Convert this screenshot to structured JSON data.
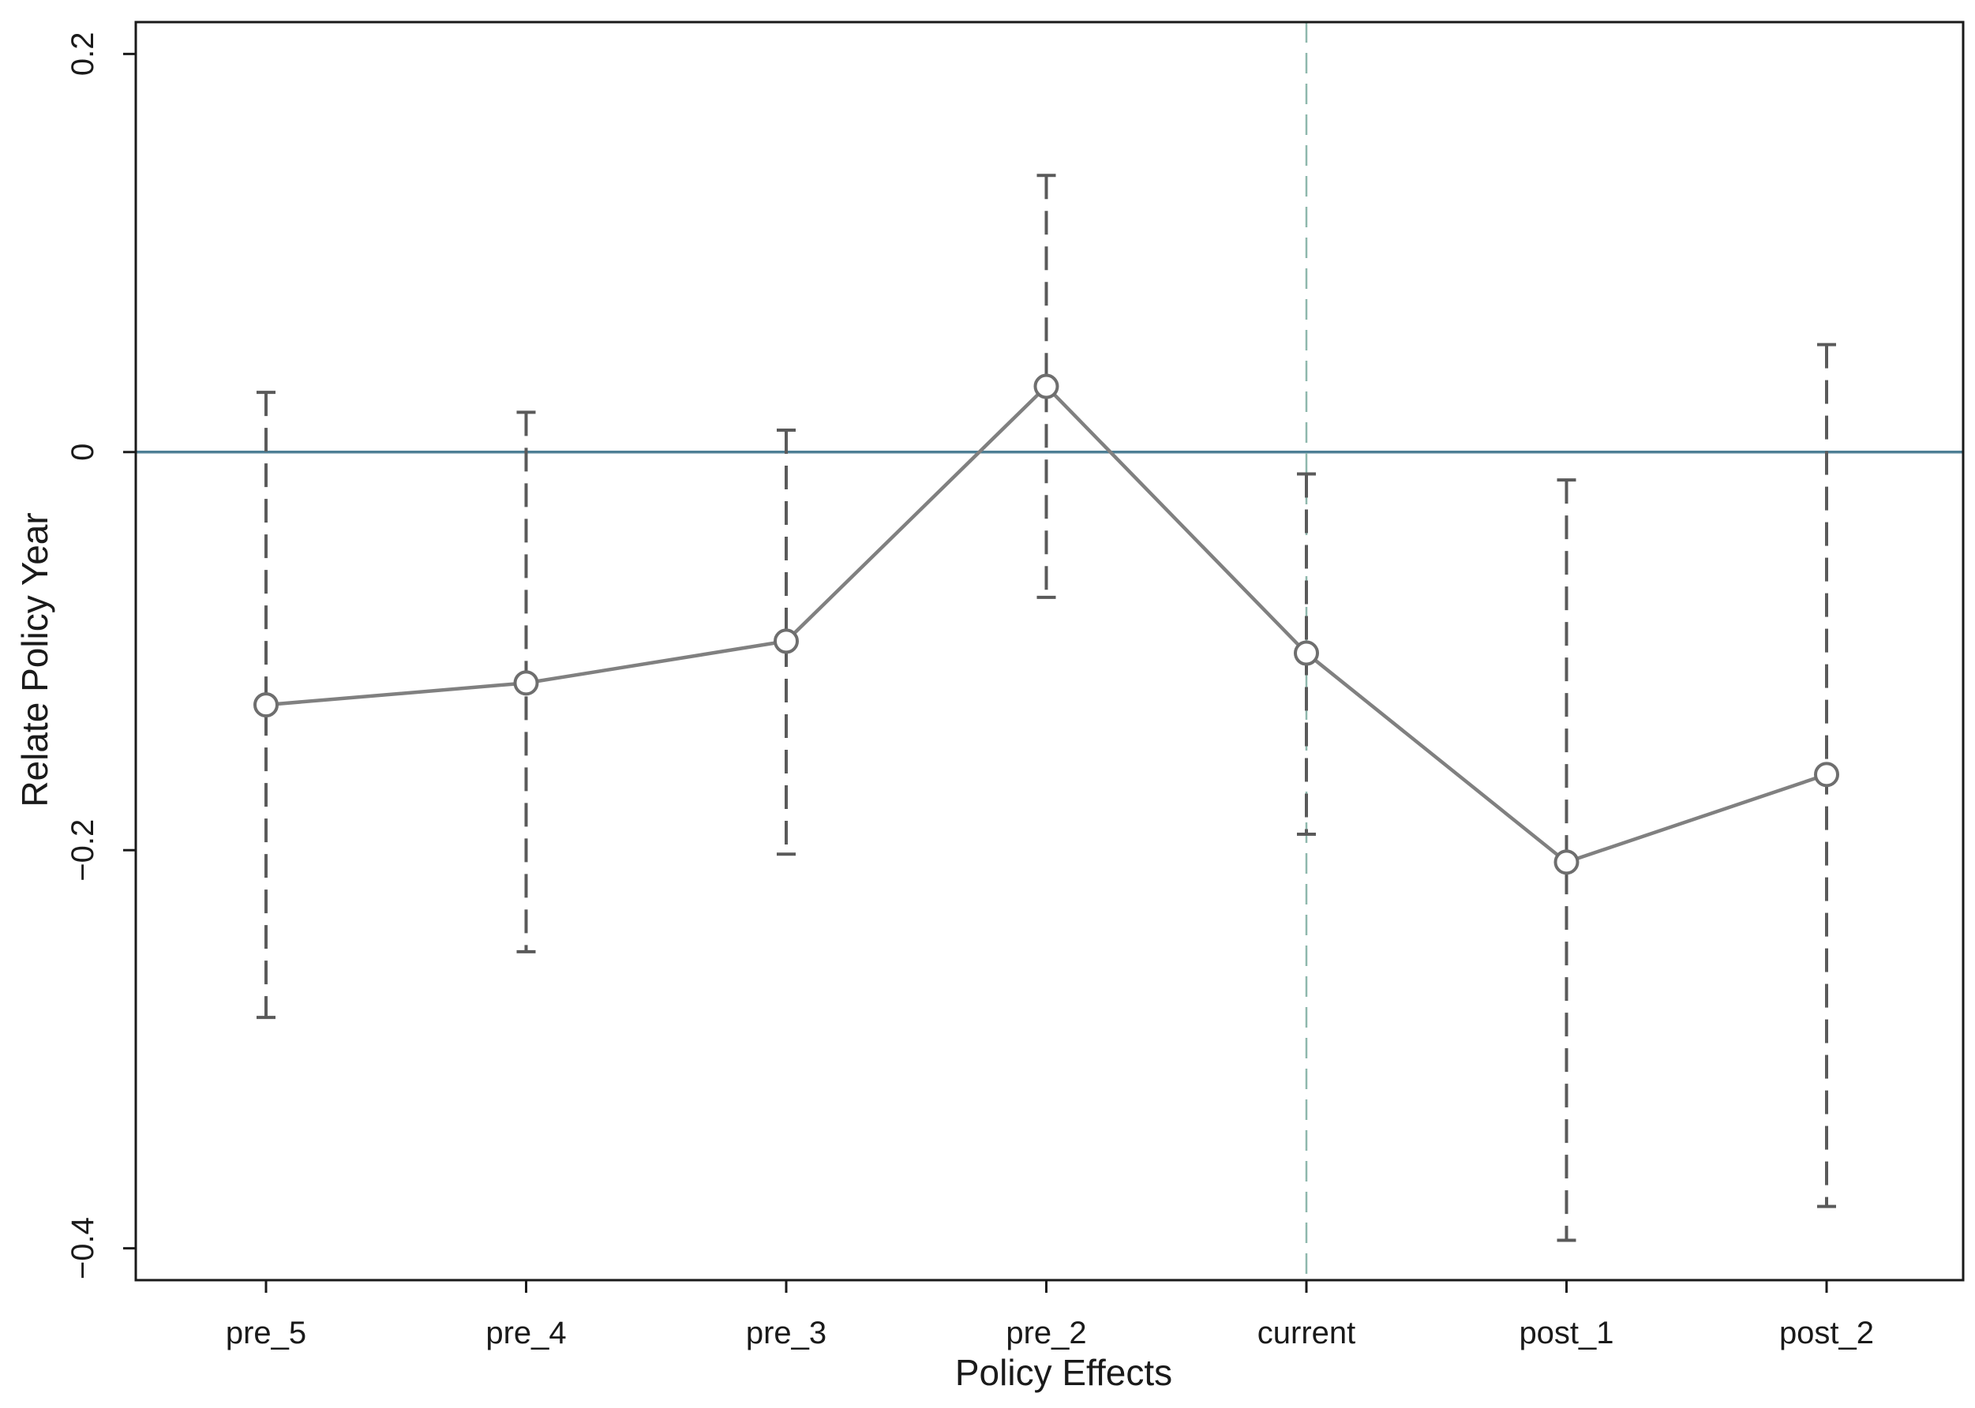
{
  "chart_data": {
    "type": "line",
    "title": "",
    "xlabel": "Policy Effects",
    "ylabel": "Relate Policy Year",
    "categories": [
      "pre_5",
      "pre_4",
      "pre_3",
      "pre_2",
      "current",
      "post_1",
      "post_2"
    ],
    "series": [
      {
        "values": [
          -0.127,
          -0.116,
          -0.095,
          0.033,
          -0.101,
          -0.206,
          -0.162
        ],
        "ci_lower": [
          -0.284,
          -0.251,
          -0.202,
          -0.073,
          -0.192,
          -0.396,
          -0.379
        ],
        "ci_upper": [
          0.03,
          0.02,
          0.011,
          0.139,
          -0.011,
          -0.014,
          0.054
        ]
      }
    ],
    "y_ticks": [
      0.2,
      0,
      -0.2,
      -0.4
    ],
    "y_tick_labels": [
      "0.2",
      "0",
      "−0.2",
      "−0.4"
    ],
    "ylim": [
      -0.416,
      0.216
    ],
    "reference_lines": {
      "horizontal_y": 0,
      "vertical_at_category": "current"
    },
    "grid": false,
    "colors": {
      "series_line": "#808080",
      "marker": "#6e6e6e",
      "error_bar": "#5a5a5a",
      "zero_line": "#4e7f95",
      "vertical_line": "#8fb8ad",
      "axis": "#1a1a1a"
    }
  }
}
